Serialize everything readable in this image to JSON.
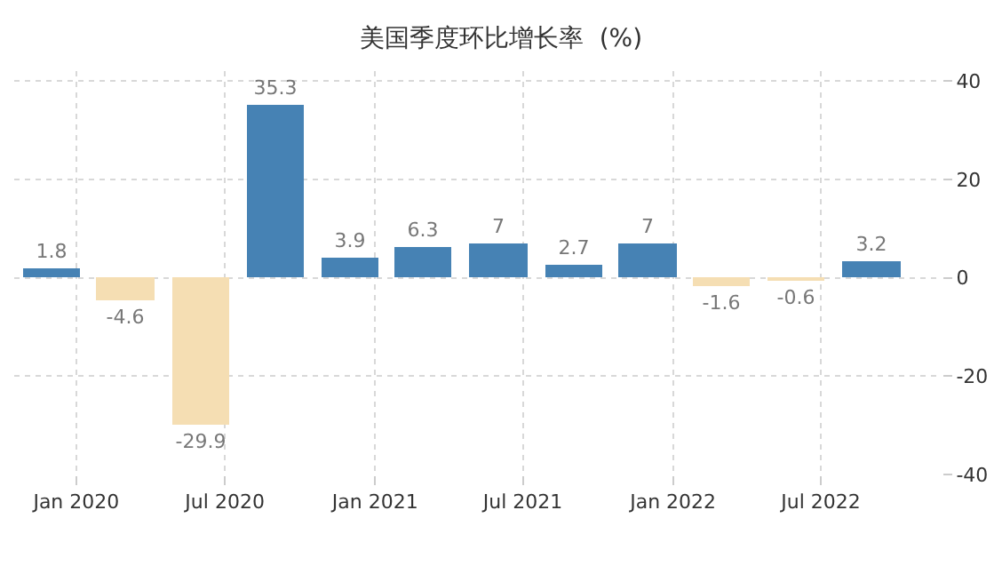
{
  "chart_data": {
    "type": "bar",
    "title": "美国季度环比增长率  (%)",
    "x": [
      "2019-12-01",
      "2020-03-01",
      "2020-06-01",
      "2020-09-01",
      "2020-12-01",
      "2021-03-01",
      "2021-06-01",
      "2021-09-01",
      "2021-12-01",
      "2022-03-01",
      "2022-06-01",
      "2022-09-01"
    ],
    "values": [
      1.8,
      -4.6,
      -29.9,
      35.3,
      3.9,
      6.3,
      7,
      2.7,
      7,
      -1.6,
      -0.6,
      3.2
    ],
    "colors": [
      "#4682b4",
      "#f5deb3",
      "#f5deb3",
      "#4682b4",
      "#4682b4",
      "#4682b4",
      "#4682b4",
      "#4682b4",
      "#4682b4",
      "#f5deb3",
      "#f5deb3",
      "#4682b4"
    ],
    "data_labels": true,
    "xlim": [
      "2019-10-17",
      "2022-11-26"
    ],
    "xticks": [
      {
        "value": "2020-01-01",
        "label": "Jan 2020"
      },
      {
        "value": "2020-07-01",
        "label": "Jul 2020"
      },
      {
        "value": "2021-01-01",
        "label": "Jan 2021"
      },
      {
        "value": "2021-07-01",
        "label": "Jul 2021"
      },
      {
        "value": "2022-01-01",
        "label": "Jan 2022"
      },
      {
        "value": "2022-07-01",
        "label": "Jul 2022"
      }
    ],
    "ylim": [
      -40,
      42
    ],
    "yticks": [
      -40,
      -20,
      0,
      20,
      40
    ],
    "grid": true
  }
}
